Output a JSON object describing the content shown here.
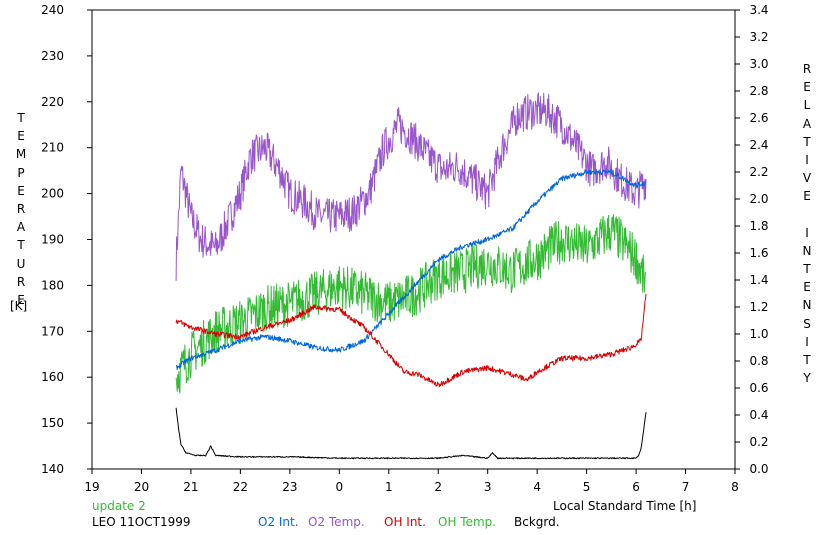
{
  "chart_data": {
    "type": "line",
    "title": "",
    "left_axis_label": "TEMPERATURE",
    "left_axis_unit": "[K]",
    "right_axis_label": "RELATIVE INTENSITY",
    "xlabel": "Local Standard Time [h]",
    "x_ticks": [
      "19",
      "20",
      "21",
      "22",
      "23",
      "0",
      "1",
      "2",
      "3",
      "4",
      "5",
      "6",
      "7",
      "8"
    ],
    "x_range": [
      19,
      32
    ],
    "y_left_ticks": [
      "140",
      "150",
      "160",
      "170",
      "180",
      "190",
      "200",
      "210",
      "220",
      "230",
      "240"
    ],
    "y_left_range": [
      140,
      240
    ],
    "y_right_ticks": [
      "0.0",
      "0.2",
      "0.4",
      "0.6",
      "0.8",
      "1.0",
      "1.2",
      "1.4",
      "1.6",
      "1.8",
      "2.0",
      "2.2",
      "2.4",
      "2.6",
      "2.8",
      "3.0",
      "3.2",
      "3.4"
    ],
    "y_right_range": [
      0.0,
      3.4
    ],
    "grid": false,
    "update_note": "update 2",
    "station_label": "LEO 11OCT1999",
    "legend": [
      {
        "name": "O2 Int.",
        "color": "#0066dd"
      },
      {
        "name": "O2 Temp.",
        "color": "#9955cc"
      },
      {
        "name": "OH Int.",
        "color": "#dd0000"
      },
      {
        "name": "OH Temp.",
        "color": "#33bb33"
      },
      {
        "name": "Bckgrd.",
        "color": "#000000"
      }
    ],
    "series": [
      {
        "name": "O2 Temp.",
        "axis": "left",
        "color": "#9955cc",
        "noise": 4,
        "x": [
          20.7,
          20.8,
          21.0,
          21.2,
          21.5,
          21.8,
          22.0,
          22.2,
          22.5,
          22.8,
          23.0,
          23.3,
          23.6,
          24.0,
          24.3,
          24.6,
          24.9,
          25.2,
          25.5,
          25.8,
          26.1,
          26.4,
          26.7,
          27.0,
          27.3,
          27.6,
          27.9,
          28.2,
          28.5,
          28.8,
          29.1,
          29.4,
          29.7,
          30.0,
          30.2
        ],
        "y": [
          185,
          205,
          195,
          190,
          188,
          195,
          200,
          208,
          210,
          205,
          200,
          198,
          195,
          195,
          196,
          200,
          210,
          215,
          212,
          208,
          205,
          206,
          203,
          200,
          210,
          217,
          218,
          218,
          215,
          210,
          205,
          207,
          203,
          200,
          203
        ]
      },
      {
        "name": "O2 Int.",
        "axis": "right",
        "color": "#0066dd",
        "noise": 0.02,
        "x": [
          20.7,
          21.0,
          21.5,
          22.0,
          22.5,
          23.0,
          23.5,
          24.0,
          24.5,
          25.0,
          25.5,
          26.0,
          26.5,
          27.0,
          27.5,
          28.0,
          28.5,
          29.0,
          29.5,
          30.0,
          30.2
        ],
        "y": [
          0.75,
          0.82,
          0.88,
          0.95,
          0.98,
          0.95,
          0.9,
          0.88,
          0.95,
          1.15,
          1.35,
          1.55,
          1.65,
          1.7,
          1.78,
          1.98,
          2.15,
          2.2,
          2.2,
          2.1,
          2.12
        ]
      },
      {
        "name": "OH Int.",
        "axis": "right",
        "color": "#dd0000",
        "noise": 0.02,
        "x": [
          20.7,
          21.0,
          21.5,
          22.0,
          22.5,
          23.0,
          23.5,
          24.0,
          24.5,
          25.0,
          25.3,
          25.6,
          26.0,
          26.5,
          27.0,
          27.5,
          27.8,
          28.0,
          28.5,
          29.0,
          29.5,
          29.9,
          30.1,
          30.2
        ],
        "y": [
          1.1,
          1.05,
          1.0,
          0.98,
          1.05,
          1.1,
          1.2,
          1.18,
          1.05,
          0.85,
          0.72,
          0.7,
          0.62,
          0.72,
          0.75,
          0.7,
          0.66,
          0.72,
          0.82,
          0.82,
          0.85,
          0.9,
          0.95,
          1.3
        ]
      },
      {
        "name": "OH Temp.",
        "axis": "left",
        "color": "#33bb33",
        "noise": 5,
        "x": [
          20.7,
          21.0,
          21.5,
          22.0,
          22.5,
          23.0,
          23.5,
          24.0,
          24.5,
          25.0,
          25.5,
          26.0,
          26.5,
          27.0,
          27.5,
          28.0,
          28.5,
          29.0,
          29.5,
          30.0,
          30.2
        ],
        "y": [
          160,
          165,
          170,
          172,
          175,
          176,
          178,
          180,
          178,
          176,
          178,
          182,
          183,
          185,
          183,
          186,
          190,
          188,
          192,
          186,
          180
        ]
      },
      {
        "name": "Bckgrd.",
        "axis": "right",
        "color": "#000000",
        "noise": 0.004,
        "x": [
          20.7,
          20.75,
          20.8,
          20.9,
          21.1,
          21.3,
          21.4,
          21.5,
          22.0,
          23.0,
          24.0,
          25.0,
          26.0,
          26.5,
          27.0,
          27.1,
          27.2,
          28.0,
          29.0,
          30.0,
          30.05,
          30.1,
          30.15,
          30.2
        ],
        "y": [
          0.45,
          0.3,
          0.18,
          0.12,
          0.1,
          0.1,
          0.17,
          0.1,
          0.09,
          0.09,
          0.08,
          0.08,
          0.08,
          0.1,
          0.08,
          0.12,
          0.08,
          0.08,
          0.08,
          0.08,
          0.1,
          0.15,
          0.28,
          0.42
        ]
      }
    ]
  }
}
